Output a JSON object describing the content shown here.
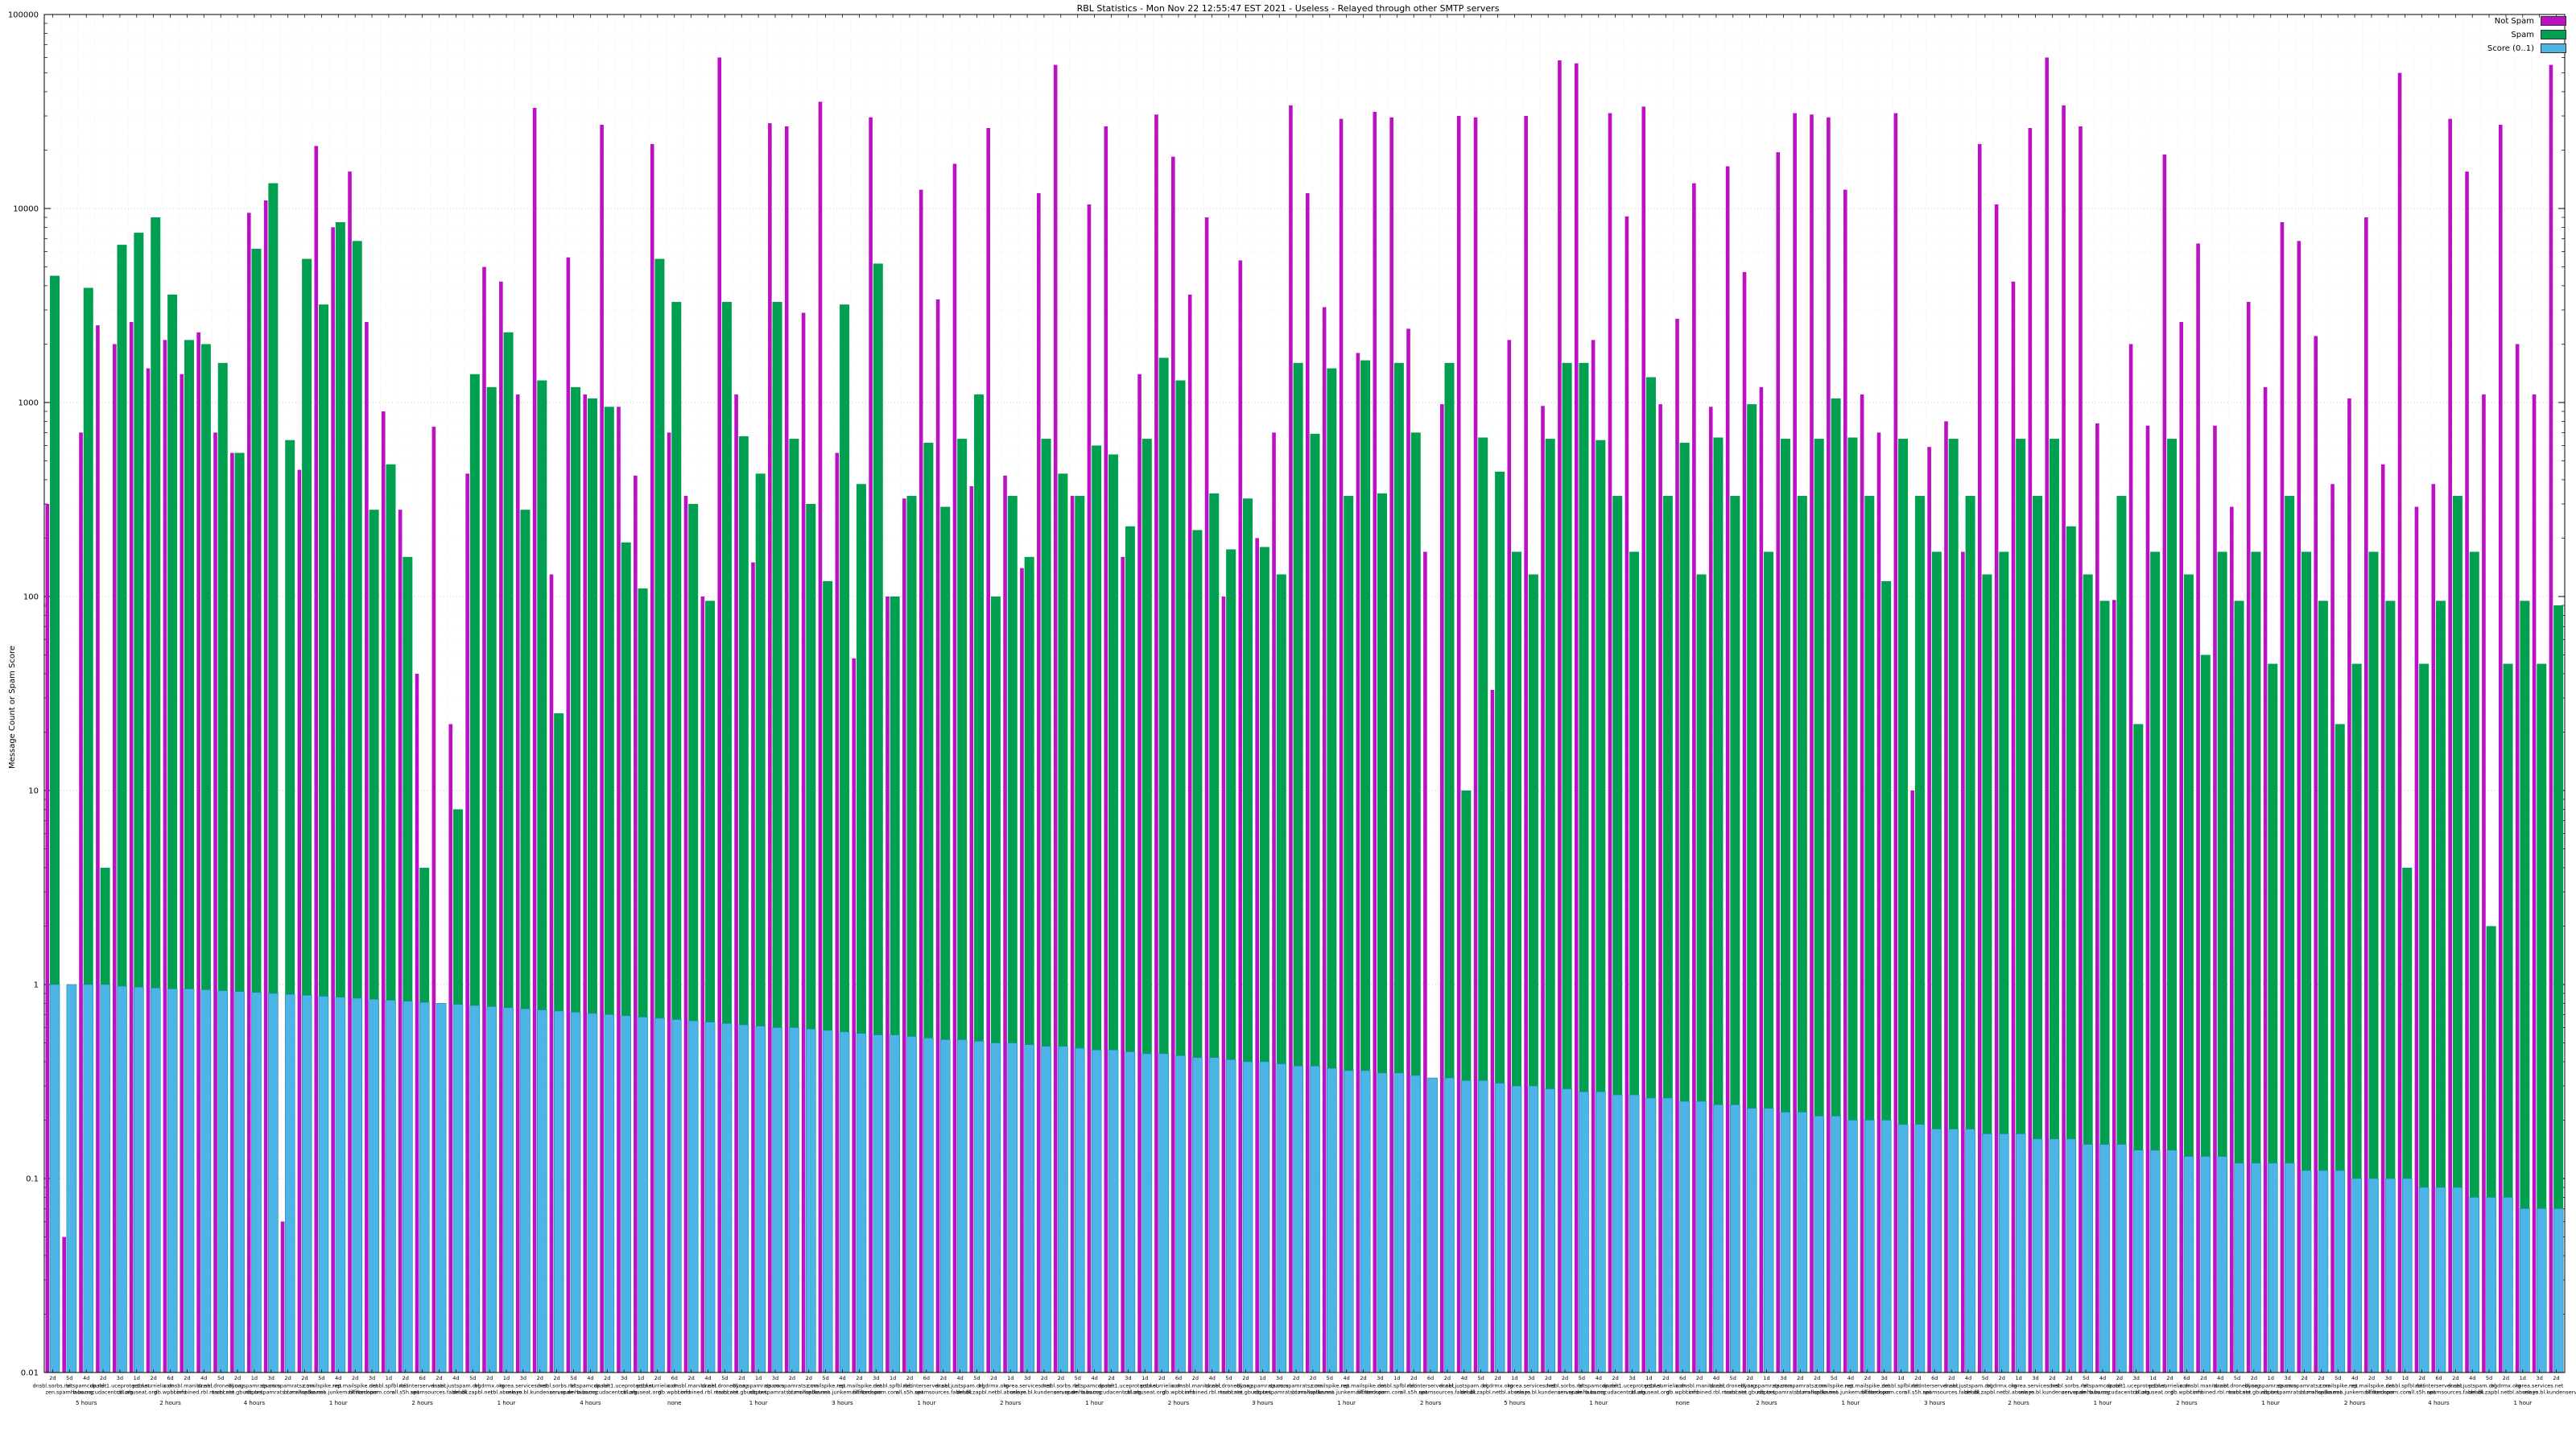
{
  "title": "RBL Statistics - Mon Nov 22 12:55:47 EST 2021 - Useless - Relayed through other SMTP servers",
  "ylabel": "Message Count or Spam Score",
  "legend": [
    {
      "label": "Not Spam",
      "color": "#bb10c4"
    },
    {
      "label": "Spam",
      "color": "#00a050"
    },
    {
      "label": "Score (0..1)",
      "color": "#4db5e6"
    }
  ],
  "axis": {
    "y_ticks": [
      {
        "label": "100000",
        "value": 100000
      },
      {
        "label": "10000",
        "value": 10000
      },
      {
        "label": "1000",
        "value": 1000
      },
      {
        "label": "100",
        "value": 100
      },
      {
        "label": "10",
        "value": 10
      },
      {
        "label": "1",
        "value": 1
      },
      {
        "label": "0.1",
        "value": 0.1
      },
      {
        "label": "0.01",
        "value": 0.01
      }
    ]
  },
  "chart_data": {
    "type": "bar",
    "log_y": true,
    "ylim": [
      0.01,
      100000
    ],
    "title": "RBL Statistics - Mon Nov 22 12:55:47 EST 2021 - Useless - Relayed through other SMTP servers",
    "xlabel": "",
    "ylabel": "Message Count or Spam Score",
    "legend_position": "top-right",
    "grid": true,
    "colors": {
      "not_spam": "#bb10c4",
      "spam": "#00a050",
      "score": "#4db5e6",
      "score_border": "#2384ab"
    },
    "categories": [
      "dnsbl.sorbs.net",
      "zen.spamhaus.org",
      "bl.spamcop.net",
      "b.barracudacentral.org",
      "dnsbl-1.uceprotect.net",
      "cbl.abuseat.org",
      "psbl.surriel.com",
      "db.wpbl.info",
      "ix.dnsbl.manitu.net",
      "combined.rbl.msrbl.net",
      "dnsbl.dronebl.org",
      "truncate.gbudb.net",
      "dyna.spamrats.com",
      "noptr.spamrats.com",
      "spam.spamrats.com",
      "bl.mailspike.net",
      "z.mailspike.net",
      "hostkarma.junkemailfilter.com",
      "rep.mailspike.net",
      "bl.nordspam.com",
      "dnsbl.spfbl.net",
      "all.s5h.net",
      "rbl.interserver.net",
      "spamsources.fabel.dk",
      "dnsbl.justspam.org",
      "dnsbl.zapbl.net",
      "bl.drmx.org",
      "rbl.abuse.ro",
      "korea.services.net",
      "relays.bl.kundenserver.de",
      "dnsbl.sorbs.net",
      "zen.spamhaus.org",
      "bl.spamcop.net",
      "b.barracudacentral.org",
      "dnsbl-1.uceprotect.net",
      "cbl.abuseat.org",
      "psbl.surriel.com",
      "db.wpbl.info",
      "ix.dnsbl.manitu.net",
      "combined.rbl.msrbl.net",
      "dnsbl.dronebl.org",
      "truncate.gbudb.net",
      "dyna.spamrats.com",
      "noptr.spamrats.com",
      "spam.spamrats.com",
      "bl.mailspike.net",
      "z.mailspike.net",
      "hostkarma.junkemailfilter.com",
      "rep.mailspike.net",
      "bl.nordspam.com",
      "dnsbl.spfbl.net",
      "all.s5h.net",
      "rbl.interserver.net",
      "spamsources.fabel.dk",
      "dnsbl.justspam.org",
      "dnsbl.zapbl.net",
      "bl.drmx.org",
      "rbl.abuse.ro",
      "korea.services.net",
      "relays.bl.kundenserver.de",
      "dnsbl.sorbs.net",
      "zen.spamhaus.org",
      "bl.spamcop.net",
      "b.barracudacentral.org",
      "dnsbl-1.uceprotect.net",
      "cbl.abuseat.org",
      "psbl.surriel.com",
      "db.wpbl.info",
      "ix.dnsbl.manitu.net",
      "combined.rbl.msrbl.net",
      "dnsbl.dronebl.org",
      "truncate.gbudb.net",
      "dyna.spamrats.com",
      "noptr.spamrats.com",
      "spam.spamrats.com",
      "bl.mailspike.net",
      "z.mailspike.net",
      "hostkarma.junkemailfilter.com",
      "rep.mailspike.net",
      "bl.nordspam.com",
      "dnsbl.spfbl.net",
      "all.s5h.net",
      "rbl.interserver.net",
      "spamsources.fabel.dk",
      "dnsbl.justspam.org",
      "dnsbl.zapbl.net",
      "bl.drmx.org",
      "rbl.abuse.ro",
      "korea.services.net",
      "relays.bl.kundenserver.de",
      "dnsbl.sorbs.net",
      "zen.spamhaus.org",
      "bl.spamcop.net",
      "b.barracudacentral.org",
      "dnsbl-1.uceprotect.net",
      "cbl.abuseat.org",
      "psbl.surriel.com",
      "db.wpbl.info",
      "ix.dnsbl.manitu.net",
      "combined.rbl.msrbl.net",
      "dnsbl.dronebl.org",
      "truncate.gbudb.net",
      "dyna.spamrats.com",
      "noptr.spamrats.com",
      "spam.spamrats.com",
      "bl.mailspike.net",
      "z.mailspike.net",
      "hostkarma.junkemailfilter.com",
      "rep.mailspike.net",
      "bl.nordspam.com",
      "dnsbl.spfbl.net",
      "all.s5h.net",
      "rbl.interserver.net",
      "spamsources.fabel.dk",
      "dnsbl.justspam.org",
      "dnsbl.zapbl.net",
      "bl.drmx.org",
      "rbl.abuse.ro",
      "korea.services.net",
      "relays.bl.kundenserver.de",
      "dnsbl.sorbs.net",
      "zen.spamhaus.org",
      "bl.spamcop.net",
      "b.barracudacentral.org",
      "dnsbl-1.uceprotect.net",
      "cbl.abuseat.org",
      "psbl.surriel.com",
      "db.wpbl.info",
      "ix.dnsbl.manitu.net",
      "combined.rbl.msrbl.net",
      "dnsbl.dronebl.org",
      "truncate.gbudb.net",
      "dyna.spamrats.com",
      "noptr.spamrats.com",
      "spam.spamrats.com",
      "bl.mailspike.net",
      "z.mailspike.net",
      "hostkarma.junkemailfilter.com",
      "rep.mailspike.net",
      "bl.nordspam.com",
      "dnsbl.spfbl.net",
      "all.s5h.net",
      "rbl.interserver.net",
      "spamsources.fabel.dk",
      "dnsbl.justspam.org",
      "dnsbl.zapbl.net",
      "bl.drmx.org",
      "rbl.abuse.ro",
      "korea.services.net",
      "relays.bl.kundenserver.de"
    ],
    "tick_row": [
      "2d",
      "5d",
      "4d",
      "2d",
      "3d",
      "1d",
      "2d",
      "6d",
      "2d",
      "4d",
      "5d",
      "2d",
      "1d",
      "3d",
      "2d",
      "2d",
      "5d",
      "4d",
      "2d",
      "3d",
      "1d",
      "2d",
      "6d",
      "2d",
      "4d",
      "5d",
      "2d",
      "1d",
      "3d",
      "2d",
      "2d",
      "5d",
      "4d",
      "2d",
      "3d",
      "1d",
      "2d",
      "6d",
      "2d",
      "4d",
      "5d",
      "2d",
      "1d",
      "3d",
      "2d",
      "2d",
      "5d",
      "4d",
      "2d",
      "3d",
      "1d",
      "2d",
      "6d",
      "2d",
      "4d",
      "5d",
      "2d",
      "1d",
      "3d",
      "2d",
      "2d",
      "5d",
      "4d",
      "2d",
      "3d",
      "1d",
      "2d",
      "6d",
      "2d",
      "4d",
      "5d",
      "2d",
      "1d",
      "3d",
      "2d",
      "2d",
      "5d",
      "4d",
      "2d",
      "3d",
      "1d",
      "2d",
      "6d",
      "2d",
      "4d",
      "5d",
      "2d",
      "1d",
      "3d",
      "2d",
      "2d",
      "5d",
      "4d",
      "2d",
      "3d",
      "1d",
      "2d",
      "6d",
      "2d",
      "4d",
      "5d",
      "2d",
      "1d",
      "3d",
      "2d",
      "2d",
      "5d",
      "4d",
      "2d",
      "3d",
      "1d",
      "2d",
      "6d",
      "2d",
      "4d",
      "5d",
      "2d",
      "1d",
      "3d",
      "2d",
      "2d",
      "5d",
      "4d",
      "2d",
      "3d",
      "1d",
      "2d",
      "6d",
      "2d",
      "4d",
      "5d",
      "2d",
      "1d",
      "3d",
      "2d",
      "2d",
      "5d",
      "4d",
      "2d",
      "3d",
      "1d",
      "2d",
      "6d",
      "2d",
      "4d",
      "5d",
      "2d",
      "1d",
      "3d",
      "2d"
    ],
    "duration_row": {
      "2": "5 hours",
      "7": "2 hours",
      "12": "4 hours",
      "17": "1 hour",
      "22": "2 hours",
      "27": "1 hour",
      "32": "4 hours",
      "37": "none",
      "42": "1 hour",
      "47": "3 hours",
      "52": "1 hour",
      "57": "2 hours",
      "62": "1 hour",
      "67": "2 hours",
      "72": "3 hours",
      "77": "1 hour",
      "82": "2 hours",
      "87": "5 hours",
      "92": "1 hour",
      "97": "none",
      "102": "2 hours",
      "107": "1 hour",
      "112": "3 hours",
      "117": "2 hours",
      "122": "1 hour",
      "127": "2 hours",
      "132": "1 hour",
      "137": "2 hours",
      "142": "4 hours",
      "147": "1 hour"
    },
    "series": [
      {
        "name": "Not Spam",
        "color": "#bb10c4",
        "values": [
          300,
          0.05,
          700,
          2500,
          2000,
          2600,
          1500,
          2100,
          1400,
          2300,
          700,
          550,
          9500,
          11000,
          0.06,
          450,
          21000,
          8000,
          15500,
          2600,
          900,
          280,
          40,
          750,
          22,
          430,
          5000,
          4200,
          1100,
          33000,
          130,
          5600,
          1100,
          27000,
          950,
          420,
          21500,
          700,
          330,
          100,
          60000,
          1100,
          150,
          27500,
          26500,
          2900,
          35500,
          550,
          48,
          29500,
          100,
          320,
          12500,
          3400,
          17000,
          370,
          26000,
          420,
          140,
          12000,
          55000,
          330,
          10500,
          26500,
          160,
          1400,
          30500,
          18500,
          3600,
          9000,
          100,
          5400,
          200,
          700,
          34000,
          12000,
          3100,
          29000,
          1800,
          31500,
          29500,
          2400,
          170,
          980,
          30000,
          29500,
          33,
          2100,
          30000,
          960,
          58000,
          56000,
          2100,
          31000,
          9100,
          33500,
          980,
          2700,
          13500,
          950,
          16500,
          4700,
          1200,
          19500,
          31000,
          30500,
          29500,
          12500,
          1100,
          700,
          31000,
          10,
          590,
          800,
          170,
          21500,
          10500,
          4200,
          26000,
          60000,
          34000,
          26500,
          780,
          96,
          2000,
          760,
          19000,
          2600,
          6600,
          760,
          290,
          3300,
          1200,
          8500,
          6800,
          2200,
          380,
          1050,
          9000,
          480,
          50000,
          290,
          380,
          29000,
          15500,
          1100,
          27000,
          2000,
          1100,
          55000
        ]
      },
      {
        "name": "Spam",
        "color": "#00a050",
        "values": [
          4500,
          0.25,
          3900,
          4,
          6500,
          7500,
          9000,
          3600,
          2100,
          2000,
          1600,
          550,
          6200,
          13500,
          640,
          5500,
          3200,
          8500,
          6800,
          280,
          480,
          160,
          4,
          0.3,
          8,
          1400,
          1200,
          2300,
          280,
          1300,
          25,
          1200,
          1050,
          950,
          190,
          110,
          5500,
          3300,
          300,
          95,
          3300,
          670,
          430,
          3300,
          650,
          300,
          120,
          3200,
          380,
          5200,
          100,
          330,
          620,
          290,
          650,
          1100,
          100,
          330,
          160,
          650,
          430,
          330,
          600,
          540,
          230,
          650,
          1700,
          1300,
          220,
          340,
          175,
          320,
          180,
          130,
          1600,
          690,
          1500,
          330,
          1650,
          340,
          1600,
          700,
          0.25,
          1600,
          10,
          660,
          440,
          170,
          130,
          650,
          1600,
          1600,
          640,
          330,
          170,
          1350,
          330,
          620,
          130,
          660,
          330,
          980,
          170,
          650,
          330,
          650,
          1050,
          660,
          330,
          120,
          650,
          330,
          170,
          650,
          330,
          130,
          170,
          650,
          330,
          650,
          230,
          130,
          95,
          330,
          22,
          170,
          650,
          130,
          50,
          170,
          95,
          170,
          45,
          330,
          170,
          95,
          22,
          45,
          170,
          95,
          4,
          45,
          95,
          330,
          170,
          2,
          45,
          95,
          45,
          90
        ]
      },
      {
        "name": "Score (0..1)",
        "color": "#4db5e6",
        "values": [
          1.0,
          1.0,
          1.0,
          1.0,
          0.98,
          0.97,
          0.96,
          0.95,
          0.95,
          0.94,
          0.93,
          0.92,
          0.91,
          0.9,
          0.89,
          0.88,
          0.87,
          0.86,
          0.85,
          0.84,
          0.83,
          0.82,
          0.81,
          0.8,
          0.79,
          0.78,
          0.77,
          0.76,
          0.75,
          0.74,
          0.73,
          0.72,
          0.71,
          0.7,
          0.69,
          0.68,
          0.67,
          0.66,
          0.65,
          0.64,
          0.63,
          0.62,
          0.61,
          0.6,
          0.6,
          0.59,
          0.58,
          0.57,
          0.56,
          0.55,
          0.55,
          0.54,
          0.53,
          0.52,
          0.52,
          0.51,
          0.5,
          0.5,
          0.49,
          0.48,
          0.48,
          0.47,
          0.46,
          0.46,
          0.45,
          0.44,
          0.44,
          0.43,
          0.42,
          0.42,
          0.41,
          0.4,
          0.4,
          0.39,
          0.38,
          0.38,
          0.37,
          0.36,
          0.36,
          0.35,
          0.35,
          0.34,
          0.33,
          0.33,
          0.32,
          0.32,
          0.31,
          0.3,
          0.3,
          0.29,
          0.29,
          0.28,
          0.28,
          0.27,
          0.27,
          0.26,
          0.26,
          0.25,
          0.25,
          0.24,
          0.24,
          0.23,
          0.23,
          0.22,
          0.22,
          0.21,
          0.21,
          0.2,
          0.2,
          0.2,
          0.19,
          0.19,
          0.18,
          0.18,
          0.18,
          0.17,
          0.17,
          0.17,
          0.16,
          0.16,
          0.16,
          0.15,
          0.15,
          0.15,
          0.14,
          0.14,
          0.14,
          0.13,
          0.13,
          0.13,
          0.12,
          0.12,
          0.12,
          0.12,
          0.11,
          0.11,
          0.11,
          0.1,
          0.1,
          0.1,
          0.1,
          0.09,
          0.09,
          0.09,
          0.08,
          0.08,
          0.08,
          0.07,
          0.07,
          0.07
        ]
      }
    ]
  }
}
